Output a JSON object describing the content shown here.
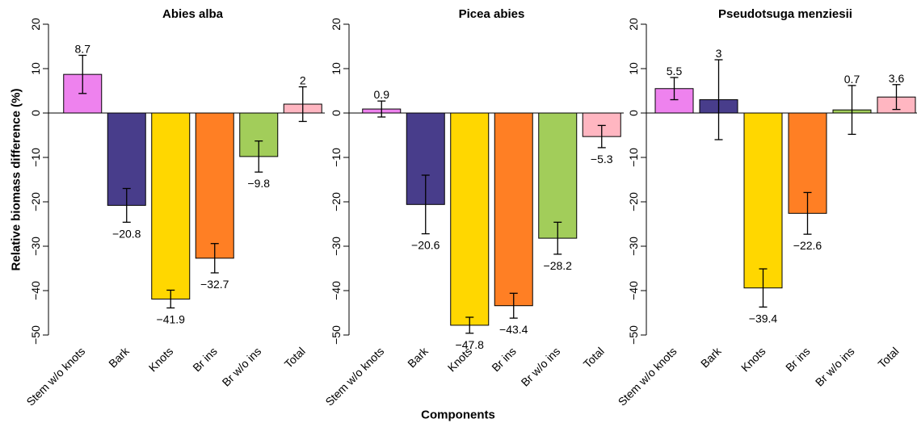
{
  "chart_data": [
    {
      "type": "bar",
      "title": "Abies alba",
      "ylabel": "Relative biomass difference (%)",
      "categories": [
        "Stem w/o knots",
        "Bark",
        "Knots",
        "Br ins",
        "Br w/o ins",
        "Total"
      ],
      "values": [
        8.7,
        -20.8,
        -41.9,
        -32.7,
        -9.8,
        2
      ],
      "value_labels": [
        "8.7",
        "−20.8",
        "−41.9",
        "−32.7",
        "−9.8",
        "2"
      ],
      "errors": [
        4.3,
        3.8,
        2,
        3.3,
        3.5,
        3.9
      ],
      "colors": [
        "#ee82ee",
        "#483d8b",
        "#ffd700",
        "#ff7f24",
        "#a2cd5a",
        "#ffb6c1"
      ],
      "ylim": [
        -50,
        20
      ],
      "yticks": [
        {
          "value": -50,
          "label": "−50"
        },
        {
          "value": -40,
          "label": "−40"
        },
        {
          "value": -30,
          "label": "−30"
        },
        {
          "value": -20,
          "label": "−20"
        },
        {
          "value": -10,
          "label": "−10"
        },
        0,
        10,
        20
      ]
    },
    {
      "type": "bar",
      "title": "Picea abies",
      "xlabel": "Components",
      "categories": [
        "Stem w/o knots",
        "Bark",
        "Knots",
        "Br ins",
        "Br w/o ins",
        "Total"
      ],
      "values": [
        0.9,
        -20.6,
        -47.8,
        -43.4,
        -28.2,
        -5.3
      ],
      "value_labels": [
        "0.9",
        "−20.6",
        "−47.8",
        "−43.4",
        "−28.2",
        "−5.3"
      ],
      "errors": [
        1.8,
        6.6,
        1.8,
        2.8,
        3.6,
        2.5
      ],
      "colors": [
        "#ee82ee",
        "#483d8b",
        "#ffd700",
        "#ff7f24",
        "#a2cd5a",
        "#ffb6c1"
      ],
      "ylim": [
        -50,
        20
      ],
      "yticks": [
        {
          "value": -50,
          "label": "−50"
        },
        {
          "value": -40,
          "label": "−40"
        },
        {
          "value": -30,
          "label": "−30"
        },
        {
          "value": -20,
          "label": "−20"
        },
        {
          "value": -10,
          "label": "−10"
        },
        0,
        10,
        20
      ]
    },
    {
      "type": "bar",
      "title": "Pseudotsuga menziesii",
      "categories": [
        "Stem w/o knots",
        "Bark",
        "Knots",
        "Br ins",
        "Br w/o ins",
        "Total"
      ],
      "values": [
        5.5,
        3,
        -39.4,
        -22.6,
        0.7,
        3.6
      ],
      "value_labels": [
        "5.5",
        "3",
        "−39.4",
        "−22.6",
        "0.7",
        "3.6"
      ],
      "errors": [
        2.5,
        9,
        4.3,
        4.7,
        5.5,
        2.8
      ],
      "colors": [
        "#ee82ee",
        "#483d8b",
        "#ffd700",
        "#ff7f24",
        "#a2cd5a",
        "#ffb6c1"
      ],
      "ylim": [
        -50,
        20
      ],
      "yticks": [
        {
          "value": -50,
          "label": "−50"
        },
        {
          "value": -40,
          "label": "−40"
        },
        {
          "value": -30,
          "label": "−30"
        },
        {
          "value": -20,
          "label": "−20"
        },
        {
          "value": -10,
          "label": "−10"
        },
        0,
        10,
        20
      ]
    }
  ]
}
